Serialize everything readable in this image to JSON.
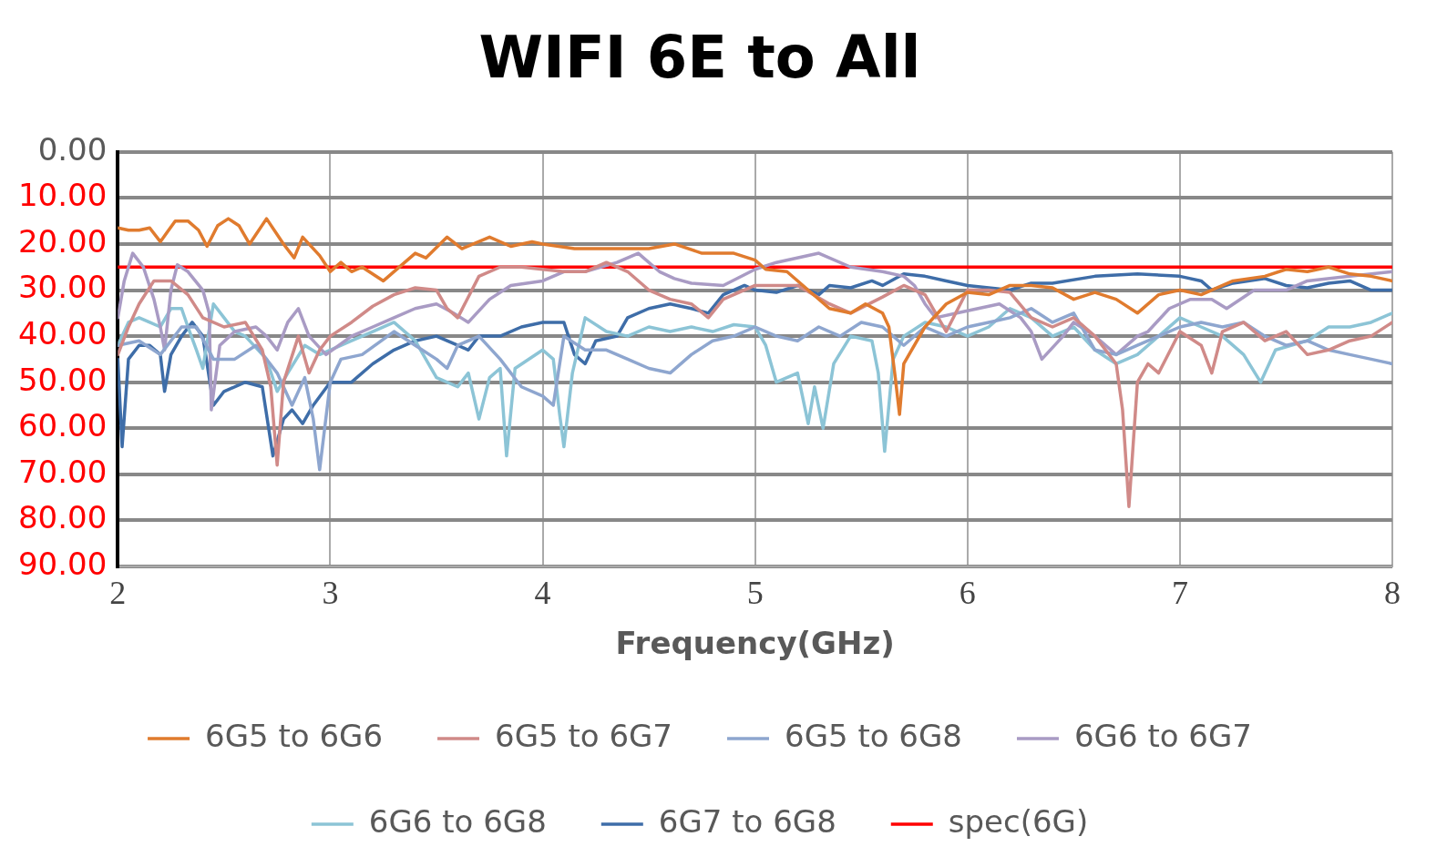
{
  "chart_data": {
    "type": "line",
    "title": "WIFI 6E to All",
    "xlabel": "Frequency(GHz)",
    "xlim": [
      2,
      8
    ],
    "xticks": [
      2,
      3,
      4,
      5,
      6,
      7,
      8
    ],
    "ylim": [
      90,
      0
    ],
    "yticks": [
      {
        "value": 0,
        "label": "0.00"
      },
      {
        "value": 10,
        "label": "10.00"
      },
      {
        "value": 20,
        "label": "20.00"
      },
      {
        "value": 30,
        "label": "30.00"
      },
      {
        "value": 40,
        "label": "40.00"
      },
      {
        "value": 50,
        "label": "50.00"
      },
      {
        "value": 60,
        "label": "60.00"
      },
      {
        "value": 70,
        "label": "70.00"
      },
      {
        "value": 80,
        "label": "80.00"
      },
      {
        "value": 90,
        "label": "90.00"
      }
    ],
    "grid": true,
    "legend": "bottom",
    "marker": "none",
    "line_style": "solid",
    "series": [
      {
        "name": "6G5 to 6G6",
        "color": "#e07b2e",
        "x": [
          2.0,
          2.05,
          2.1,
          2.15,
          2.2,
          2.27,
          2.33,
          2.38,
          2.42,
          2.47,
          2.52,
          2.57,
          2.62,
          2.7,
          2.78,
          2.83,
          2.87,
          2.95,
          3.0,
          3.05,
          3.1,
          3.15,
          3.25,
          3.4,
          3.45,
          3.55,
          3.62,
          3.75,
          3.85,
          3.95,
          4.0,
          4.15,
          4.3,
          4.5,
          4.62,
          4.75,
          4.9,
          5.0,
          5.05,
          5.15,
          5.25,
          5.35,
          5.45,
          5.52,
          5.6,
          5.63,
          5.66,
          5.68,
          5.7,
          5.8,
          5.9,
          6.0,
          6.1,
          6.2,
          6.3,
          6.4,
          6.5,
          6.6,
          6.7,
          6.8,
          6.9,
          7.0,
          7.1,
          7.25,
          7.4,
          7.5,
          7.6,
          7.7,
          7.8,
          7.9,
          8.0
        ],
        "values": [
          16.5,
          17,
          17,
          16.5,
          19.5,
          15,
          15,
          17,
          20.5,
          16,
          14.5,
          16,
          20,
          14.5,
          20,
          23,
          18.5,
          22.5,
          26,
          24,
          26,
          25,
          28,
          22,
          23,
          18.5,
          21,
          18.5,
          20.5,
          19.5,
          20,
          21,
          21,
          21,
          20,
          22,
          22,
          23.5,
          25.5,
          26,
          30,
          34,
          35,
          33,
          35,
          38,
          49,
          57,
          46,
          38,
          33,
          30.5,
          31,
          29,
          29,
          29.5,
          32,
          30.5,
          32,
          35,
          31,
          30,
          31,
          28,
          27,
          25.5,
          26,
          25,
          26.5,
          27,
          28
        ]
      },
      {
        "name": "6G5 to 6G7",
        "color": "#d08a88",
        "x": [
          2.0,
          2.05,
          2.1,
          2.17,
          2.25,
          2.33,
          2.4,
          2.5,
          2.6,
          2.68,
          2.72,
          2.75,
          2.78,
          2.85,
          2.9,
          2.95,
          3.0,
          3.1,
          3.2,
          3.3,
          3.4,
          3.5,
          3.55,
          3.6,
          3.7,
          3.8,
          3.9,
          4.0,
          4.1,
          4.2,
          4.3,
          4.4,
          4.5,
          4.6,
          4.7,
          4.78,
          4.85,
          5.0,
          5.1,
          5.2,
          5.35,
          5.45,
          5.6,
          5.7,
          5.8,
          5.9,
          6.0,
          6.1,
          6.2,
          6.3,
          6.4,
          6.5,
          6.6,
          6.7,
          6.73,
          6.76,
          6.8,
          6.85,
          6.9,
          7.0,
          7.1,
          7.15,
          7.2,
          7.3,
          7.4,
          7.5,
          7.6,
          7.7,
          7.8,
          7.9,
          8.0
        ],
        "values": [
          44,
          38,
          33,
          28,
          28,
          31,
          36,
          38,
          37,
          43,
          51,
          68,
          50,
          40,
          48,
          43,
          40,
          37,
          33.5,
          31,
          29.5,
          30,
          34,
          36,
          27,
          25,
          25,
          25.5,
          26,
          26,
          24,
          26,
          30,
          32,
          33,
          36,
          32,
          29,
          29,
          29,
          33,
          35,
          31.5,
          29,
          31,
          39,
          30,
          30,
          30.5,
          36,
          38,
          36,
          40,
          46,
          56,
          77,
          50,
          46,
          48,
          39,
          42,
          48,
          39,
          37,
          41,
          39,
          44,
          43,
          41,
          40,
          37
        ]
      },
      {
        "name": "6G5 to 6G8",
        "color": "#8ea6cf",
        "x": [
          2.0,
          2.1,
          2.2,
          2.3,
          2.37,
          2.45,
          2.55,
          2.65,
          2.75,
          2.82,
          2.88,
          2.92,
          2.95,
          3.0,
          3.05,
          3.15,
          3.3,
          3.4,
          3.5,
          3.55,
          3.6,
          3.7,
          3.8,
          3.9,
          4.0,
          4.05,
          4.1,
          4.2,
          4.3,
          4.4,
          4.5,
          4.6,
          4.7,
          4.8,
          4.9,
          5.0,
          5.1,
          5.2,
          5.3,
          5.4,
          5.5,
          5.6,
          5.7,
          5.8,
          5.9,
          6.0,
          6.1,
          6.2,
          6.3,
          6.4,
          6.5,
          6.6,
          6.7,
          6.8,
          6.9,
          7.0,
          7.1,
          7.2,
          7.3,
          7.4,
          7.5,
          7.6,
          7.7,
          7.8,
          7.9,
          8.0
        ],
        "values": [
          42,
          41,
          44,
          38,
          38,
          45,
          45,
          42,
          48,
          55,
          49,
          58,
          69,
          50,
          45,
          44,
          39,
          42,
          45,
          47,
          42,
          40,
          45,
          51,
          53,
          55,
          40,
          43,
          43,
          45,
          47,
          48,
          44,
          41,
          40,
          38,
          40,
          41,
          38,
          40,
          37,
          38,
          42,
          38,
          40,
          38,
          37,
          36,
          34,
          37,
          35,
          43,
          44,
          42,
          40,
          38,
          37,
          38,
          37,
          40,
          42,
          41,
          43,
          44,
          45,
          46
        ]
      },
      {
        "name": "6G6 to 6G7",
        "color": "#a99bc4",
        "x": [
          2.0,
          2.03,
          2.07,
          2.12,
          2.17,
          2.2,
          2.22,
          2.25,
          2.28,
          2.33,
          2.4,
          2.43,
          2.44,
          2.48,
          2.55,
          2.65,
          2.7,
          2.75,
          2.8,
          2.85,
          2.9,
          2.98,
          3.1,
          3.2,
          3.3,
          3.4,
          3.5,
          3.58,
          3.65,
          3.75,
          3.85,
          4.0,
          4.1,
          4.2,
          4.35,
          4.45,
          4.55,
          4.62,
          4.7,
          4.85,
          5.0,
          5.1,
          5.3,
          5.45,
          5.6,
          5.7,
          5.75,
          5.8,
          5.85,
          5.95,
          6.05,
          6.15,
          6.25,
          6.3,
          6.35,
          6.45,
          6.5,
          6.6,
          6.7,
          6.8,
          6.85,
          6.95,
          7.05,
          7.15,
          7.22,
          7.35,
          7.5,
          7.6,
          7.8,
          8.0
        ],
        "values": [
          36,
          28,
          22,
          25,
          32,
          38,
          43,
          30,
          24.5,
          26,
          30,
          35,
          56,
          42,
          39,
          38,
          40,
          43,
          37,
          34,
          40,
          44,
          40,
          38,
          36,
          34,
          33,
          35,
          37,
          32,
          29,
          28,
          26,
          26,
          24,
          22,
          26,
          27.5,
          28.5,
          29,
          25.5,
          24,
          22,
          25,
          26,
          27,
          29,
          33,
          36,
          35,
          34,
          33,
          36,
          39,
          45,
          40,
          37,
          40,
          44,
          40,
          39,
          34,
          32,
          32,
          34,
          30,
          30,
          28,
          27,
          26
        ]
      },
      {
        "name": "6G6 to 6G8",
        "color": "#8cc4d6",
        "x": [
          2.0,
          2.05,
          2.1,
          2.15,
          2.2,
          2.25,
          2.3,
          2.33,
          2.37,
          2.4,
          2.45,
          2.5,
          2.55,
          2.6,
          2.7,
          2.75,
          2.8,
          2.88,
          2.95,
          3.0,
          3.1,
          3.2,
          3.3,
          3.4,
          3.5,
          3.6,
          3.65,
          3.7,
          3.75,
          3.8,
          3.83,
          3.87,
          4.0,
          4.05,
          4.08,
          4.1,
          4.14,
          4.2,
          4.3,
          4.4,
          4.5,
          4.6,
          4.7,
          4.8,
          4.9,
          5.0,
          5.05,
          5.1,
          5.2,
          5.25,
          5.28,
          5.32,
          5.37,
          5.45,
          5.55,
          5.58,
          5.61,
          5.65,
          5.7,
          5.8,
          5.9,
          6.0,
          6.1,
          6.2,
          6.3,
          6.4,
          6.5,
          6.6,
          6.7,
          6.8,
          6.9,
          7.0,
          7.1,
          7.2,
          7.3,
          7.38,
          7.45,
          7.6,
          7.7,
          7.8,
          7.9,
          8.0
        ],
        "values": [
          42,
          37,
          36,
          37,
          38,
          34,
          34,
          38,
          43,
          47,
          33,
          36,
          39,
          40,
          45,
          52,
          48,
          42,
          44,
          43,
          41,
          39,
          37,
          41,
          49,
          51,
          48,
          58,
          49,
          47,
          66,
          47,
          43,
          45,
          57,
          64,
          48,
          36,
          39,
          40,
          38,
          39,
          38,
          39,
          37.5,
          38,
          42,
          50,
          48,
          59,
          51,
          60,
          46,
          40,
          41,
          48,
          65,
          45,
          40,
          37,
          38,
          40,
          38,
          34,
          36,
          40,
          38,
          43,
          46,
          44,
          40,
          36,
          38,
          40,
          44,
          50,
          43,
          41,
          38,
          38,
          37,
          35
        ]
      },
      {
        "name": "6G7 to 6G8",
        "color": "#3e6da8",
        "x": [
          2.0,
          2.02,
          2.05,
          2.1,
          2.15,
          2.2,
          2.22,
          2.25,
          2.3,
          2.35,
          2.4,
          2.45,
          2.5,
          2.6,
          2.68,
          2.71,
          2.73,
          2.78,
          2.82,
          2.87,
          2.92,
          3.0,
          3.1,
          3.2,
          3.3,
          3.4,
          3.5,
          3.6,
          3.65,
          3.7,
          3.8,
          3.9,
          4.0,
          4.1,
          4.15,
          4.2,
          4.25,
          4.35,
          4.4,
          4.5,
          4.6,
          4.7,
          4.78,
          4.85,
          4.95,
          5.0,
          5.1,
          5.2,
          5.3,
          5.35,
          5.45,
          5.55,
          5.6,
          5.7,
          5.8,
          5.9,
          6.0,
          6.1,
          6.2,
          6.3,
          6.4,
          6.6,
          6.8,
          7.0,
          7.1,
          7.15,
          7.25,
          7.4,
          7.5,
          7.6,
          7.7,
          7.8,
          7.9,
          8.0
        ],
        "values": [
          45,
          64,
          45,
          42,
          42,
          44,
          52,
          44,
          40,
          37,
          40,
          55,
          52,
          50,
          51,
          60,
          66,
          58,
          56,
          59,
          55,
          50,
          50,
          46,
          43,
          41,
          40,
          42,
          43,
          40,
          40,
          38,
          37,
          37,
          44,
          46,
          41,
          40,
          36,
          34,
          33,
          34,
          35,
          31,
          29,
          30,
          30.5,
          29,
          31,
          29,
          29.5,
          28,
          29,
          26.5,
          27,
          28,
          29,
          29.5,
          30,
          28.5,
          28.5,
          27,
          26.5,
          27,
          28,
          30,
          28.5,
          27.5,
          29,
          29.5,
          28.5,
          28,
          30,
          30
        ]
      },
      {
        "name": "spec(6G)",
        "color": "#ff0000",
        "x": [
          2,
          8
        ],
        "values": [
          25,
          25
        ]
      }
    ]
  }
}
